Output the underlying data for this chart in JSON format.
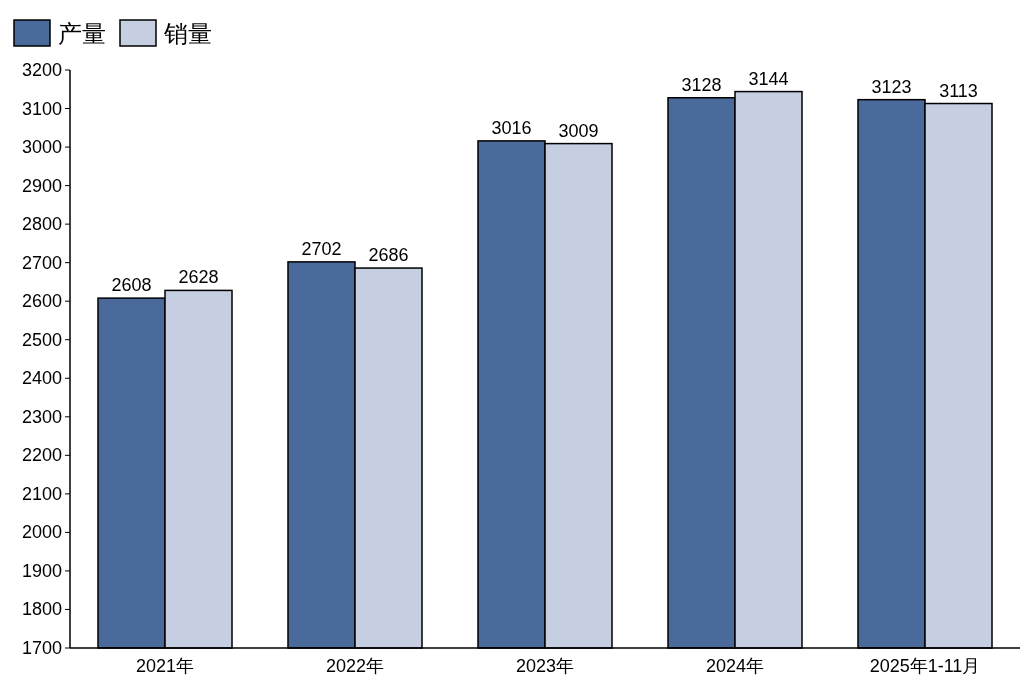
{
  "chart_data": {
    "type": "bar",
    "categories": [
      "2021年",
      "2022年",
      "2023年",
      "2024年",
      "2025年1-11月"
    ],
    "series": [
      {
        "name": "产量",
        "color": "#4a6a9b",
        "values": [
          2608,
          2702,
          3016,
          3128,
          3123
        ]
      },
      {
        "name": "销量",
        "color": "#c5cfe1",
        "values": [
          2628,
          2686,
          3009,
          3144,
          3113
        ]
      }
    ],
    "ylim": [
      1700,
      3200
    ],
    "yticks": [
      1700,
      1800,
      1900,
      2000,
      2100,
      2200,
      2300,
      2400,
      2500,
      2600,
      2700,
      2800,
      2900,
      3000,
      3100,
      3200
    ],
    "data_labels": true,
    "legend": "top left"
  }
}
